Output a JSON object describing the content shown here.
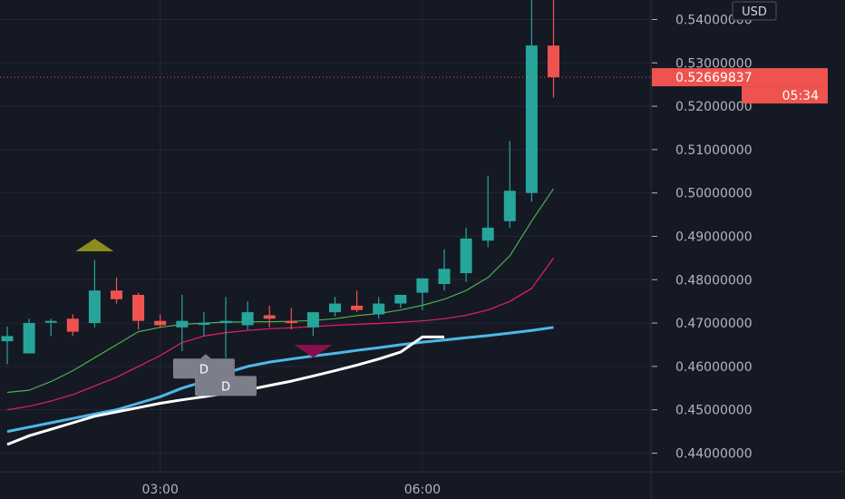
{
  "chart_data": {
    "type": "candlestick",
    "currency": "USD",
    "price_axis": {
      "ticks": [
        0.54,
        0.53,
        0.52,
        0.51,
        0.5,
        0.49,
        0.48,
        0.47,
        0.46,
        0.45,
        0.44
      ],
      "labels": [
        "0.54000000",
        "0.53000000",
        "0.52000000",
        "0.51000000",
        "0.50000000",
        "0.49000000",
        "0.48000000",
        "0.47000000",
        "0.46000000",
        "0.45000000",
        "0.44000000"
      ],
      "ylim": [
        0.4357,
        0.5445
      ]
    },
    "time_axis": {
      "labels": [
        {
          "text": "03:00",
          "index": 7
        },
        {
          "text": "06:00",
          "index": 19
        }
      ]
    },
    "current_price": {
      "value": 0.52669837,
      "label": "0.52669837",
      "countdown": "05:34"
    },
    "candles": [
      {
        "o": 0.4658,
        "h": 0.4692,
        "l": 0.4605,
        "c": 0.467
      },
      {
        "o": 0.463,
        "h": 0.471,
        "l": 0.463,
        "c": 0.47
      },
      {
        "o": 0.4705,
        "h": 0.471,
        "l": 0.467,
        "c": 0.4705
      },
      {
        "o": 0.471,
        "h": 0.472,
        "l": 0.467,
        "c": 0.468
      },
      {
        "o": 0.47,
        "h": 0.4845,
        "l": 0.469,
        "c": 0.4775
      },
      {
        "o": 0.4775,
        "h": 0.4805,
        "l": 0.4745,
        "c": 0.4755
      },
      {
        "o": 0.4765,
        "h": 0.477,
        "l": 0.4685,
        "c": 0.4705
      },
      {
        "o": 0.4705,
        "h": 0.472,
        "l": 0.469,
        "c": 0.4695
      },
      {
        "o": 0.469,
        "h": 0.4765,
        "l": 0.4635,
        "c": 0.4705
      },
      {
        "o": 0.47,
        "h": 0.4725,
        "l": 0.467,
        "c": 0.47
      },
      {
        "o": 0.47,
        "h": 0.476,
        "l": 0.462,
        "c": 0.4705
      },
      {
        "o": 0.4695,
        "h": 0.475,
        "l": 0.4685,
        "c": 0.4725
      },
      {
        "o": 0.4718,
        "h": 0.474,
        "l": 0.469,
        "c": 0.471
      },
      {
        "o": 0.4705,
        "h": 0.4735,
        "l": 0.4685,
        "c": 0.47
      },
      {
        "o": 0.469,
        "h": 0.4725,
        "l": 0.467,
        "c": 0.4725
      },
      {
        "o": 0.4725,
        "h": 0.476,
        "l": 0.4715,
        "c": 0.4745
      },
      {
        "o": 0.474,
        "h": 0.4775,
        "l": 0.4725,
        "c": 0.473
      },
      {
        "o": 0.472,
        "h": 0.476,
        "l": 0.471,
        "c": 0.4745
      },
      {
        "o": 0.4745,
        "h": 0.4765,
        "l": 0.4735,
        "c": 0.4765
      },
      {
        "o": 0.477,
        "h": 0.48,
        "l": 0.473,
        "c": 0.4803
      },
      {
        "o": 0.479,
        "h": 0.487,
        "l": 0.4775,
        "c": 0.4825
      },
      {
        "o": 0.4815,
        "h": 0.492,
        "l": 0.4795,
        "c": 0.4895
      },
      {
        "o": 0.489,
        "h": 0.504,
        "l": 0.4875,
        "c": 0.492
      },
      {
        "o": 0.4935,
        "h": 0.512,
        "l": 0.492,
        "c": 0.5005
      },
      {
        "o": 0.5,
        "h": 0.545,
        "l": 0.498,
        "c": 0.534
      },
      {
        "o": 0.534,
        "h": 0.545,
        "l": 0.522,
        "c": 0.5267
      }
    ],
    "series": [
      {
        "color": "#4caf50",
        "values": [
          0.454,
          0.4545,
          0.4565,
          0.459,
          0.462,
          0.465,
          0.468,
          0.469,
          0.4697,
          0.47,
          0.4702,
          0.4703,
          0.4703,
          0.4704,
          0.4706,
          0.471,
          0.4717,
          0.4722,
          0.473,
          0.4741,
          0.4755,
          0.4775,
          0.4805,
          0.4855,
          0.4935,
          0.501
        ]
      },
      {
        "color": "#e91e63",
        "values": [
          0.45,
          0.4508,
          0.452,
          0.4535,
          0.4555,
          0.4575,
          0.46,
          0.4625,
          0.4655,
          0.467,
          0.4678,
          0.4683,
          0.4687,
          0.4689,
          0.4692,
          0.4695,
          0.4697,
          0.4699,
          0.4702,
          0.4705,
          0.471,
          0.4718,
          0.473,
          0.475,
          0.478,
          0.485
        ]
      },
      {
        "color": "#4fb7e8",
        "values": [
          0.445,
          0.446,
          0.447,
          0.448,
          0.449,
          0.45,
          0.4515,
          0.453,
          0.455,
          0.4565,
          0.4585,
          0.46,
          0.461,
          0.4617,
          0.4624,
          0.463,
          0.4637,
          0.4643,
          0.465,
          0.4656,
          0.4661,
          0.4666,
          0.4671,
          0.4677,
          0.4683,
          0.469
        ]
      },
      {
        "color": "#ffffff",
        "values": [
          0.442,
          0.444,
          0.4455,
          0.447,
          0.4485,
          0.4495,
          0.4505,
          0.4515,
          0.4523,
          0.453,
          0.4538,
          0.4546,
          0.4556,
          0.4566,
          0.4578,
          0.459,
          0.4603,
          0.4617,
          0.4633,
          0.4668,
          0.4668,
          null,
          null,
          null,
          null,
          null
        ]
      }
    ],
    "markers": [
      {
        "type": "triangle-up",
        "index": 4,
        "price": 0.488,
        "color": "#8c8c1f"
      },
      {
        "type": "triangle-down",
        "index": 14,
        "price": 0.4635,
        "color": "#880e4f"
      },
      {
        "type": "label",
        "text": "D",
        "index": 9,
        "price": 0.4595
      },
      {
        "type": "label",
        "text": "D",
        "index": 10,
        "price": 0.4555
      }
    ]
  }
}
